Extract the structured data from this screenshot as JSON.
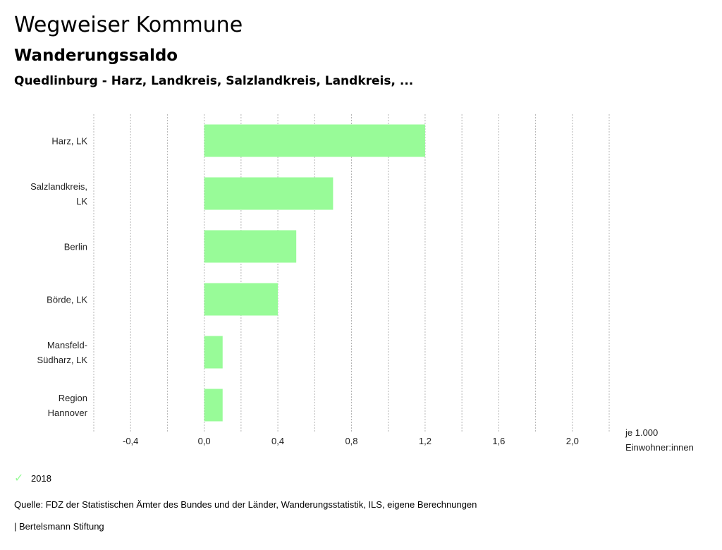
{
  "header": {
    "title": "Wegweiser Kommune",
    "subtitle": "Wanderungssaldo",
    "region": "Quedlinburg - Harz, Landkreis, Salzlandkreis, Landkreis, ..."
  },
  "chart_data": {
    "type": "bar",
    "orientation": "horizontal",
    "categories": [
      [
        "Harz, LK"
      ],
      [
        "Salzlandkreis,",
        "LK"
      ],
      [
        "Berlin"
      ],
      [
        "Börde, LK"
      ],
      [
        "Mansfeld-",
        "Südharz, LK"
      ],
      [
        "Region",
        "Hannover"
      ]
    ],
    "series": [
      {
        "name": "2018",
        "values": [
          1.2,
          0.7,
          0.5,
          0.4,
          0.1,
          0.1
        ],
        "color": "#98fb98"
      }
    ],
    "xlim": [
      -0.6,
      2.2
    ],
    "ticks": [
      -0.4,
      0.0,
      0.4,
      0.8,
      1.2,
      1.6,
      2.0
    ],
    "tick_labels": [
      "-0,4",
      "0,0",
      "0,4",
      "0,8",
      "1,2",
      "1,6",
      "2,0"
    ],
    "unit_label": [
      "je 1.000",
      "Einwohner:innen"
    ],
    "grid": true,
    "legend_placement": "bottom-left"
  },
  "legend": {
    "label": "2018",
    "icon": "check-icon",
    "color": "#98fb98"
  },
  "footer": {
    "source": "Quelle: FDZ der Statistischen Ämter des Bundes und der Länder, Wanderungsstatistik, ILS, eigene Berechnungen",
    "credit": "| Bertelsmann Stiftung"
  }
}
